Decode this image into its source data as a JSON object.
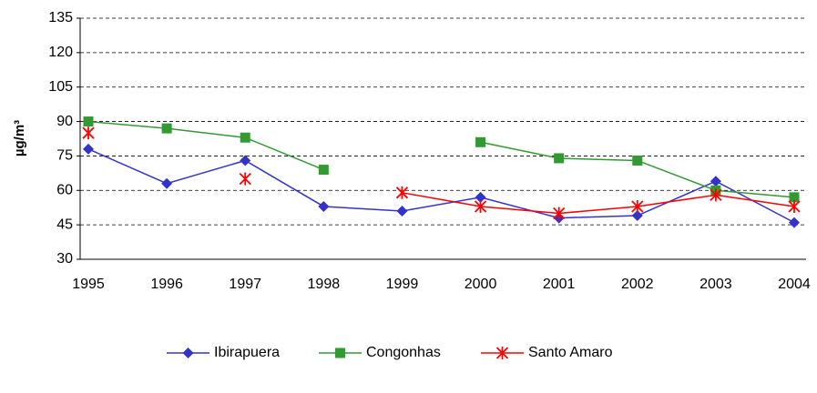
{
  "chart_data": {
    "type": "line",
    "y_label": "µg/m³",
    "categories": [
      "1995",
      "1996",
      "1997",
      "1998",
      "1999",
      "2000",
      "2001",
      "2002",
      "2003",
      "2004"
    ],
    "series": [
      {
        "name": "Ibirapuera",
        "color": "#3333cc",
        "marker": "diamond",
        "values": [
          78,
          63,
          73,
          53,
          51,
          57,
          48,
          49,
          64,
          46
        ]
      },
      {
        "name": "Congonhas",
        "color": "#339933",
        "marker": "square",
        "values": [
          90,
          87,
          83,
          69,
          null,
          81,
          74,
          73,
          60,
          57
        ]
      },
      {
        "name": "Santo Amaro",
        "color": "#ff0000",
        "marker": "star",
        "values": [
          85,
          null,
          65,
          null,
          59,
          53,
          50,
          53,
          58,
          53
        ]
      }
    ],
    "ylim": [
      30,
      135
    ],
    "yticks": [
      30,
      45,
      60,
      75,
      90,
      105,
      120,
      135
    ],
    "grid": true,
    "legend": "bottom"
  }
}
